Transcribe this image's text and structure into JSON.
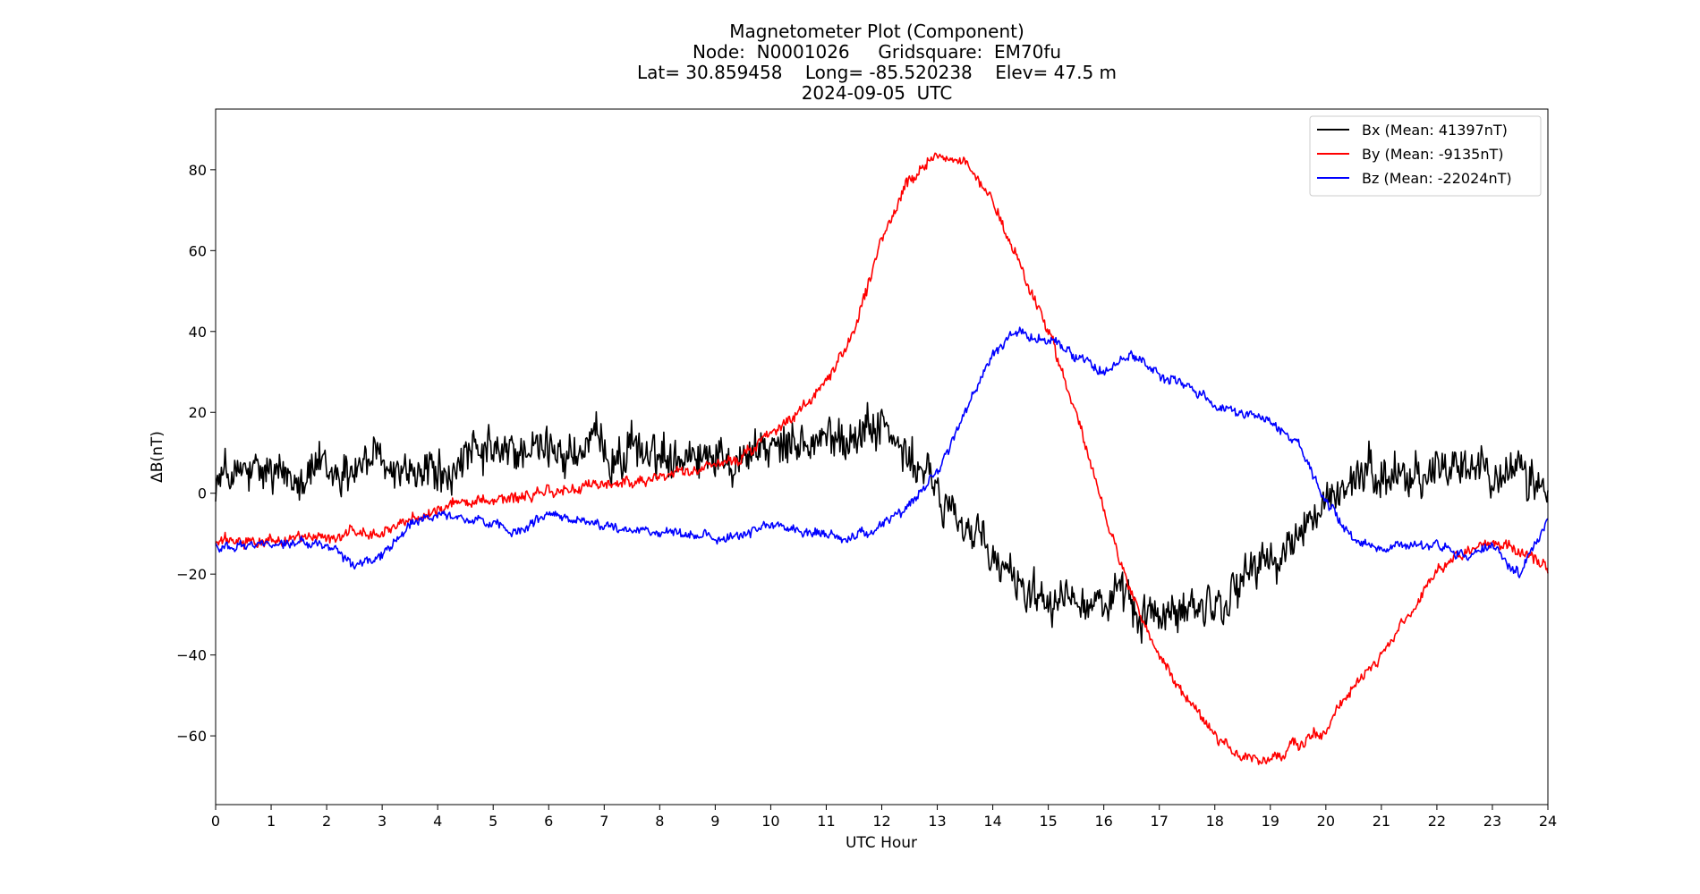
{
  "chart_data": {
    "type": "line",
    "title_lines": [
      "Magnetometer Plot (Component)",
      "Node:  N0001026     Gridsquare:  EM70fu",
      "Lat= 30.859458    Long= -85.520238    Elev= 47.5 m",
      "2024-09-05  UTC"
    ],
    "xlabel": "UTC Hour",
    "ylabel": "ΔB(nT)",
    "xlim": [
      0,
      24
    ],
    "ylim": [
      -77,
      95
    ],
    "xticks": [
      0,
      1,
      2,
      3,
      4,
      5,
      6,
      7,
      8,
      9,
      10,
      11,
      12,
      13,
      14,
      15,
      16,
      17,
      18,
      19,
      20,
      21,
      22,
      23,
      24
    ],
    "yticks": [
      -60,
      -40,
      -20,
      0,
      20,
      40,
      60,
      80
    ],
    "ytick_labels": [
      "−60",
      "−40",
      "−20",
      "0",
      "20",
      "40",
      "60",
      "80"
    ],
    "grid": false,
    "legend_position": "top-right",
    "series": [
      {
        "name": "Bx (Mean: 41397nT)",
        "color": "#000000",
        "noise": 7,
        "x": [
          0,
          0.5,
          1,
          1.5,
          2,
          2.5,
          3,
          3.5,
          4,
          4.5,
          5,
          5.5,
          6,
          6.5,
          7,
          7.5,
          8,
          8.5,
          9,
          9.5,
          10,
          10.5,
          11,
          11.5,
          12,
          12.5,
          13,
          13.5,
          14,
          14.5,
          15,
          15.5,
          16,
          16.5,
          17,
          17.5,
          18,
          18.5,
          19,
          19.5,
          20,
          20.5,
          21,
          21.5,
          22,
          22.5,
          23,
          23.5,
          24
        ],
        "y": [
          4,
          4,
          5,
          6,
          6,
          7,
          8,
          7,
          5,
          7,
          10,
          10,
          10,
          10,
          10,
          10,
          10,
          11,
          10,
          11,
          11,
          12,
          14,
          15,
          16,
          8,
          0,
          -8,
          -17,
          -22,
          -25,
          -26,
          -27,
          -28,
          -30,
          -30,
          -27,
          -22,
          -17,
          -12,
          -3,
          3,
          4,
          5,
          6,
          7,
          7,
          6,
          -1
        ]
      },
      {
        "name": "By (Mean: -9135nT)",
        "color": "#ff0000",
        "noise": 1.8,
        "x": [
          0,
          0.5,
          1,
          1.5,
          2,
          2.5,
          3,
          3.5,
          4,
          4.5,
          5,
          5.5,
          6,
          6.5,
          7,
          7.5,
          8,
          8.5,
          9,
          9.5,
          10,
          10.5,
          11,
          11.5,
          12,
          12.5,
          13,
          13.5,
          14,
          14.5,
          15,
          15.5,
          16,
          16.5,
          17,
          17.5,
          18,
          18.5,
          19,
          19.5,
          20,
          20.5,
          21,
          21.5,
          22,
          22.5,
          23,
          23.5,
          24
        ],
        "y": [
          -12,
          -12,
          -12,
          -11,
          -11,
          -10,
          -9,
          -7,
          -4,
          -2,
          -1,
          -1,
          0,
          1,
          2,
          3,
          4,
          5,
          7,
          9,
          14,
          20,
          27,
          40,
          63,
          77,
          84,
          82,
          72,
          56,
          40,
          20,
          -5,
          -25,
          -40,
          -51,
          -60,
          -66,
          -66,
          -62,
          -58,
          -48,
          -40,
          -30,
          -20,
          -15,
          -12,
          -14,
          -18
        ]
      },
      {
        "name": "Bz (Mean: -22024nT)",
        "color": "#0000ff",
        "noise": 1.5,
        "x": [
          0,
          0.5,
          1,
          1.5,
          2,
          2.5,
          3,
          3.5,
          4,
          4.5,
          5,
          5.5,
          6,
          6.5,
          7,
          7.5,
          8,
          8.5,
          9,
          9.5,
          10,
          10.5,
          11,
          11.5,
          12,
          12.5,
          13,
          13.5,
          14,
          14.5,
          15,
          15.5,
          16,
          16.5,
          17,
          17.5,
          18,
          18.5,
          19,
          19.5,
          20,
          20.5,
          21,
          21.5,
          22,
          22.5,
          23,
          23.5,
          24
        ],
        "y": [
          -13,
          -13,
          -12,
          -12,
          -13,
          -18,
          -15,
          -8,
          -5,
          -6,
          -8,
          -10,
          -5,
          -7,
          -8,
          -9,
          -10,
          -10,
          -11,
          -10,
          -8,
          -9,
          -10,
          -11,
          -8,
          -3,
          5,
          20,
          35,
          40,
          38,
          34,
          30,
          34,
          29,
          27,
          22,
          20,
          18,
          12,
          -2,
          -12,
          -14,
          -13,
          -12,
          -16,
          -13,
          -20,
          -7
        ]
      }
    ]
  }
}
